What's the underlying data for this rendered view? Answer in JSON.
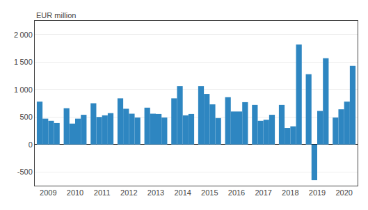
{
  "chart_data": {
    "type": "bar",
    "annotations": [
      "EUR million"
    ],
    "categories": [
      "2009",
      "2010",
      "2011",
      "2012",
      "2013",
      "2014",
      "2015",
      "2016",
      "2017",
      "2018",
      "2019",
      "2020"
    ],
    "color": "#2e86c1",
    "series": [
      {
        "values": [
          780,
          660,
          750,
          840,
          670,
          840,
          1060,
          860,
          720,
          720,
          1280,
          490
        ]
      },
      {
        "values": [
          470,
          380,
          500,
          650,
          560,
          1060,
          920,
          600,
          430,
          300,
          -650,
          640
        ]
      },
      {
        "values": [
          430,
          470,
          530,
          560,
          555,
          530,
          730,
          600,
          450,
          330,
          610,
          780
        ]
      },
      {
        "values": [
          390,
          540,
          570,
          490,
          490,
          555,
          480,
          770,
          540,
          1820,
          1570,
          1430
        ]
      }
    ],
    "ylim": [
      -750,
      2250
    ],
    "yticks": [
      -500,
      0,
      500,
      {
        "value": 1000,
        "label": "1 000"
      },
      {
        "value": 1500,
        "label": "1 500"
      },
      {
        "value": 2000,
        "label": "2 000"
      }
    ],
    "grid": true
  }
}
